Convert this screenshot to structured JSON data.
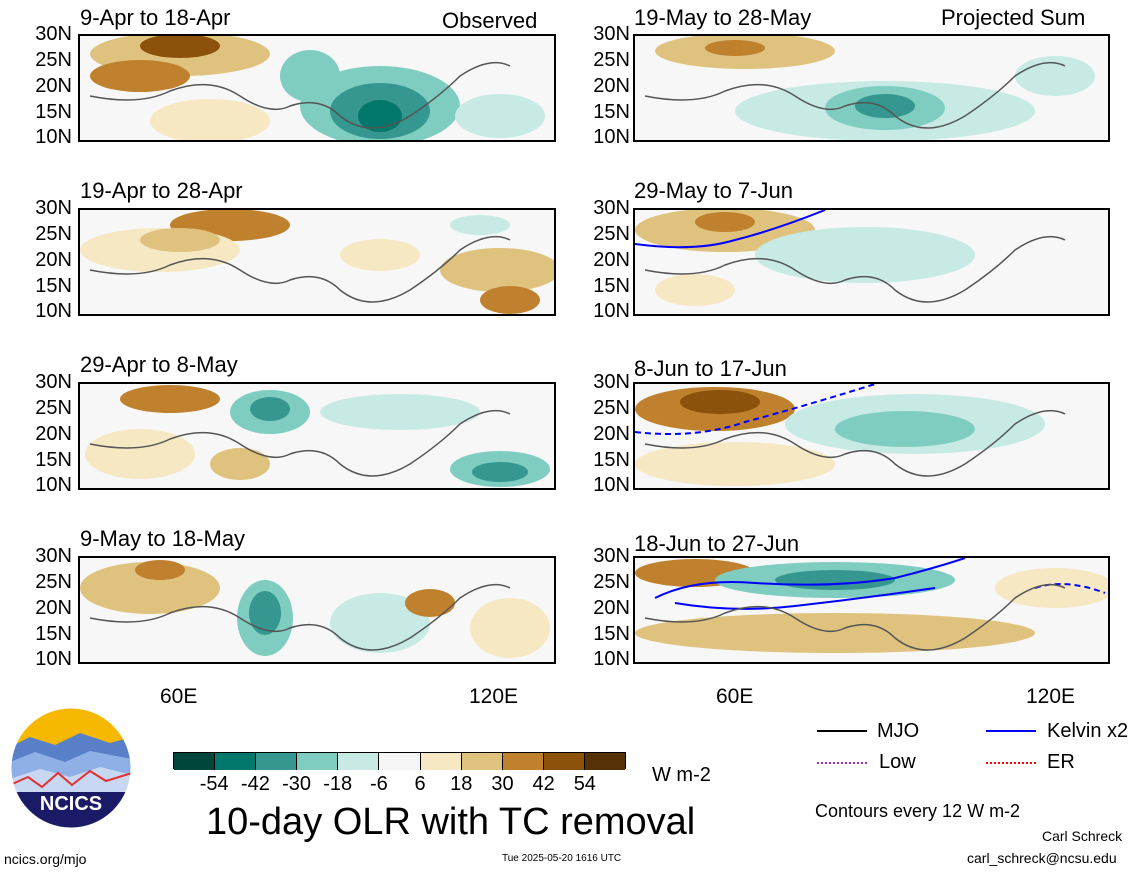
{
  "observed_tag": "Observed",
  "projected_tag": "Projected Sum",
  "lat_labels": [
    "30N",
    "25N",
    "20N",
    "15N",
    "10N"
  ],
  "lon_labels": [
    "60E",
    "120E"
  ],
  "panels": [
    {
      "title": "9-Apr to 18-Apr"
    },
    {
      "title": "19-Apr to 28-Apr"
    },
    {
      "title": "29-Apr to 8-May"
    },
    {
      "title": "9-May to 18-May"
    },
    {
      "title": "19-May to 28-May"
    },
    {
      "title": "29-May to 7-Jun"
    },
    {
      "title": "8-Jun to 17-Jun"
    },
    {
      "title": "18-Jun to 27-Jun"
    }
  ],
  "colorbar": {
    "ticks": [
      "-54",
      "-42",
      "-30",
      "-18",
      "-6",
      "6",
      "18",
      "30",
      "42",
      "54"
    ],
    "colors": [
      "#01463b",
      "#02776b",
      "#35978f",
      "#7fcdc1",
      "#c7eae5",
      "#f5f5f5",
      "#f6e8c3",
      "#dfc27d",
      "#bf812d",
      "#8c510a",
      "#553105"
    ],
    "units": "W m-2"
  },
  "main_title": "10-day OLR with TC removal",
  "legend": {
    "items": [
      {
        "label": "MJO",
        "color": "#000000"
      },
      {
        "label": "Kelvin x2",
        "color": "#0000ff"
      },
      {
        "label": "Low",
        "color": "#9933cc"
      },
      {
        "label": "ER",
        "color": "#ff0000"
      }
    ],
    "contour_note": "Contours every 12 W m-2"
  },
  "logo_text": "NCICS",
  "author": "Carl Schreck",
  "email": "carl_schreck@ncsu.edu",
  "site": "ncics.org/mjo",
  "timestamp": "Tue 2025-05-20 1616 UTC"
}
